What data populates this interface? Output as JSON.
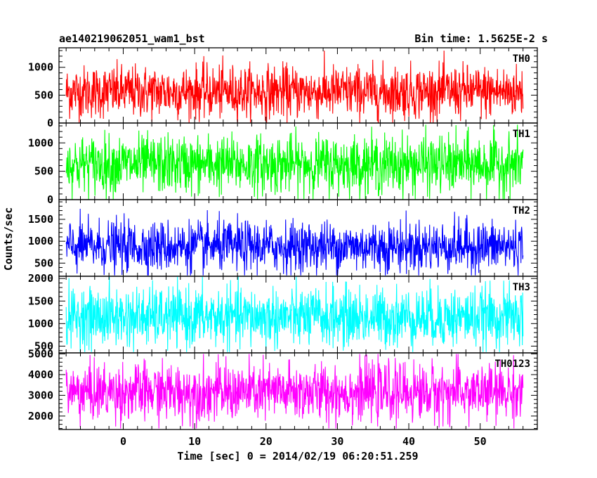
{
  "chart_data": {
    "type": "line",
    "title_left": "ae140219062051_wam1_bst",
    "title_right": "Bin time: 1.5625E-2 s",
    "xlabel": "Time [sec] 0 = 2014/02/19 06:20:51.259",
    "ylabel": "Counts/sec",
    "xlim": [
      -9,
      58
    ],
    "x_data_range": [
      -8,
      56
    ],
    "x_ticks": [
      0,
      10,
      20,
      30,
      40,
      50
    ],
    "panels": [
      {
        "name": "TH0",
        "color": "#ff0000",
        "ylim": [
          0,
          1350
        ],
        "y_ticks": [
          0,
          500,
          1000
        ],
        "mean": 560,
        "spread": 235,
        "min": 0,
        "max": 1300
      },
      {
        "name": "TH1",
        "color": "#00ff00",
        "ylim": [
          0,
          1350
        ],
        "y_ticks": [
          0,
          500,
          1000
        ],
        "mean": 620,
        "spread": 255,
        "min": 0,
        "max": 1320
      },
      {
        "name": "TH2",
        "color": "#0000ff",
        "ylim": [
          200,
          1950
        ],
        "y_ticks": [
          500,
          1000,
          1500
        ],
        "mean": 880,
        "spread": 290,
        "min": 220,
        "max": 1900
      },
      {
        "name": "TH3",
        "color": "#00ffff",
        "ylim": [
          350,
          2050
        ],
        "y_ticks": [
          500,
          1000,
          1500,
          2000
        ],
        "mean": 1140,
        "spread": 330,
        "min": 370,
        "max": 2040
      },
      {
        "name": "TH0123",
        "color": "#ff00ff",
        "ylim": [
          1350,
          5050
        ],
        "y_ticks": [
          2000,
          3000,
          4000,
          5000
        ],
        "mean": 3150,
        "spread": 700,
        "min": 1400,
        "max": 5000
      }
    ]
  }
}
